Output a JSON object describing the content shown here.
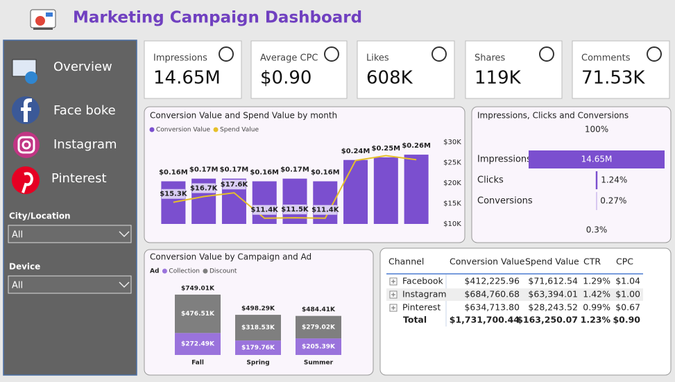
{
  "header": {
    "title": "Marketing Campaign Dashboard"
  },
  "sidebar": {
    "nav": [
      "Overview",
      "Face boke",
      "Instagram",
      "Pinterest"
    ],
    "filters": [
      {
        "label": "City/Location",
        "value": "All"
      },
      {
        "label": "Device",
        "value": "All"
      }
    ]
  },
  "kpis": [
    {
      "label": "Impressions",
      "value": "14.65M"
    },
    {
      "label": "Average CPC",
      "value": "$0.90"
    },
    {
      "label": "Likes",
      "value": "608K"
    },
    {
      "label": "Shares",
      "value": "119K"
    },
    {
      "label": "Comments",
      "value": "71.53K"
    }
  ],
  "chart_data": [
    {
      "type": "bar_line",
      "title": "Conversion Value and Spend Value by month",
      "categories": [
        null,
        null,
        null,
        null,
        null,
        null,
        null,
        null,
        null
      ],
      "ylim": [
        0,
        307000
      ],
      "y2lim": [
        10000,
        30000
      ],
      "y2ticks": [
        {
          "value": 30000,
          "label": "$30K"
        },
        {
          "value": 25000,
          "label": "$25K"
        },
        {
          "value": 20000,
          "label": "$20K"
        },
        {
          "value": 15000,
          "label": "$15K"
        },
        {
          "value": 10000,
          "label": "$10K"
        }
      ],
      "series": [
        {
          "name": "Conversion Value",
          "color": "#7b4fcf",
          "values": [
            160000,
            170000,
            170000,
            160000,
            170000,
            160000,
            240000,
            250000,
            260000
          ],
          "value_labels": [
            "$0.16M",
            "$0.17M",
            "$0.17M",
            "$0.16M",
            "$0.17M",
            "$0.16M",
            "$0.24M",
            "$0.25M",
            "$0.26M"
          ]
        },
        {
          "name": "Spend Value",
          "color": "#e6c02a",
          "axis": "y2",
          "values": [
            15300,
            16700,
            17600,
            11400,
            11500,
            11400,
            25500,
            26700,
            25700
          ],
          "value_labels": [
            "$15.3K",
            "$16.7K",
            "$17.6K",
            "$11.4K",
            "$11.5K",
            "$11.4K",
            null,
            null,
            null
          ]
        }
      ]
    },
    {
      "type": "funnel",
      "title": "Impressions, Clicks and Conversions",
      "categories": [
        "Impressions",
        "Clicks",
        "Conversions"
      ],
      "values": [
        100,
        1.24,
        0.27
      ],
      "value_labels": [
        "100%",
        "1.24%",
        "0.27%"
      ],
      "bar_text": "14.65M",
      "footer": "0.3%",
      "color": "#7b4fcf"
    },
    {
      "type": "stacked_bar",
      "title": "Conversion Value by Campaign and Ad",
      "legend_title": "Ad",
      "categories": [
        "Fall",
        "Spring",
        "Summer"
      ],
      "ylim": [
        0,
        800000
      ],
      "series": [
        {
          "name": "Collection",
          "color": "#9a73dc",
          "values": [
            272490,
            179760,
            205390
          ],
          "value_labels": [
            "$272.49K",
            "$179.76K",
            "$205.39K"
          ]
        },
        {
          "name": "Discount",
          "color": "#7f7f7f",
          "values": [
            476510,
            318530,
            279020
          ],
          "value_labels": [
            "$476.51K",
            "$318.53K",
            "$279.02K"
          ]
        }
      ],
      "totals": [
        749010,
        498290,
        484410
      ],
      "total_labels": [
        "$749.01K",
        "$498.29K",
        "$484.41K"
      ]
    }
  ],
  "table": {
    "columns": [
      "Channel",
      "Conversion Value",
      "Spend Value",
      "CTR",
      "CPC"
    ],
    "rows": [
      [
        "Facebook",
        "$412,225.96",
        "$71,612.54",
        "1.29%",
        "$1.04"
      ],
      [
        "Instagram",
        "$684,760.68",
        "$63,394.01",
        "1.42%",
        "$1.00"
      ],
      [
        "Pinterest",
        "$634,713.80",
        "$28,243.52",
        "0.99%",
        "$0.67"
      ]
    ],
    "total": [
      "Total",
      "$1,731,700.44",
      "$163,250.07",
      "1.23%",
      "$0.90"
    ]
  }
}
